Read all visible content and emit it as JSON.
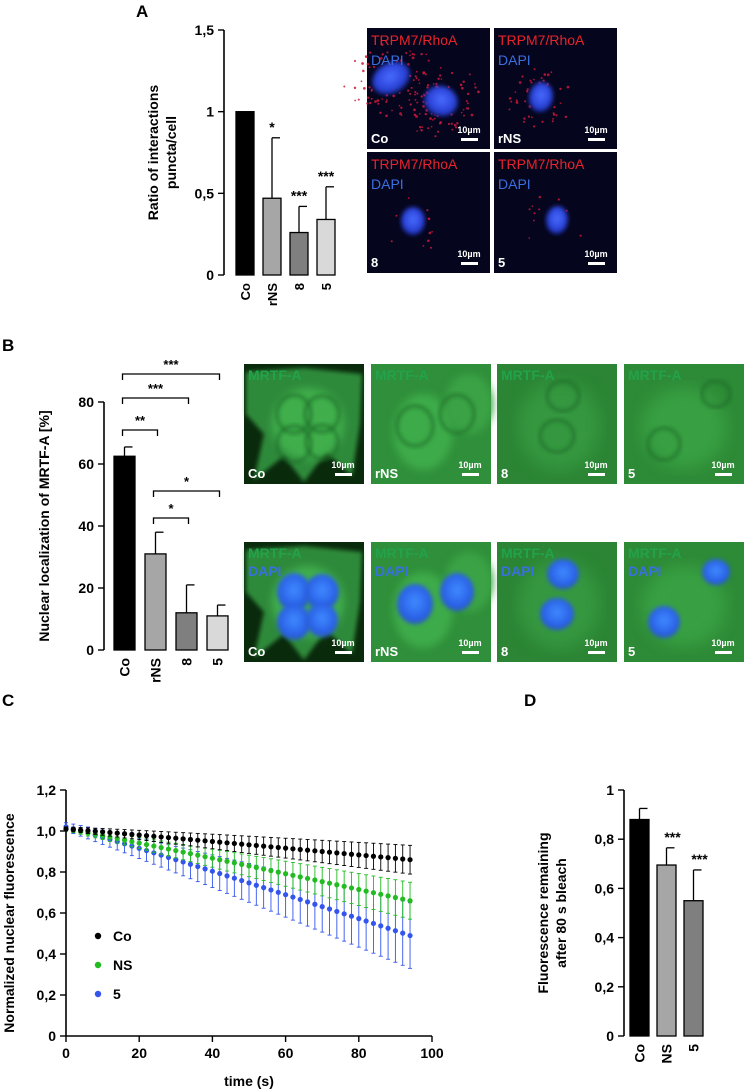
{
  "panels": {
    "A": {
      "letter": "A"
    },
    "B": {
      "letter": "B"
    },
    "C": {
      "letter": "C"
    },
    "D": {
      "letter": "D"
    }
  },
  "chart_data": [
    {
      "id": "A",
      "type": "bar",
      "categories": [
        "Co",
        "rNS",
        "8",
        "5"
      ],
      "values": [
        1.0,
        0.47,
        0.26,
        0.34
      ],
      "errors": [
        0,
        0.37,
        0.16,
        0.2
      ],
      "significance": [
        "",
        "*",
        "***",
        "***"
      ],
      "colors": [
        "#000000",
        "#a6a6a6",
        "#7f7f7f",
        "#d9d9d9"
      ],
      "ylabel_lines": [
        "Ratio of interactions",
        "puncta/cell"
      ],
      "ylim": [
        0,
        1.5
      ],
      "yticks": [
        0,
        0.5,
        1,
        1.5
      ],
      "ytick_labels": [
        "0",
        "0,5",
        "1",
        "1,5"
      ]
    },
    {
      "id": "B",
      "type": "bar",
      "categories": [
        "Co",
        "rNS",
        "8",
        "5"
      ],
      "values": [
        62.5,
        31,
        12,
        11
      ],
      "errors": [
        3,
        7,
        9,
        3.5
      ],
      "colors": [
        "#000000",
        "#a6a6a6",
        "#7f7f7f",
        "#d9d9d9"
      ],
      "ylabel": "Nuclear localization of MRTF-A [%]",
      "ylim": [
        0,
        80
      ],
      "yticks": [
        0,
        20,
        40,
        60,
        80
      ],
      "ytick_labels": [
        "0",
        "20",
        "40",
        "60",
        "80"
      ],
      "brackets": [
        {
          "from": 0,
          "to": 1,
          "label": "**"
        },
        {
          "from": 0,
          "to": 2,
          "label": "***"
        },
        {
          "from": 0,
          "to": 3,
          "label": "***"
        },
        {
          "from": 1,
          "to": 2,
          "label": "*"
        },
        {
          "from": 1,
          "to": 3,
          "label": "*"
        }
      ]
    },
    {
      "id": "C",
      "type": "scatter",
      "xlabel": "time (s)",
      "ylabel": "Normalized nuclear fluorescence",
      "xlim": [
        0,
        100
      ],
      "ylim": [
        0,
        1.2
      ],
      "xticks": [
        0,
        20,
        40,
        60,
        80,
        100
      ],
      "xtick_labels": [
        "0",
        "20",
        "40",
        "60",
        "80",
        "100"
      ],
      "yticks": [
        0,
        0.2,
        0.4,
        0.6,
        0.8,
        1.0,
        1.2
      ],
      "ytick_labels": [
        "0",
        "0,2",
        "0,4",
        "0,6",
        "0,8",
        "1,0",
        "1,2"
      ],
      "x_start": 0,
      "x_end": 94,
      "n_points": 48,
      "legend_position": "lower-left",
      "series": [
        {
          "name": "Co",
          "color": "#000000",
          "y_start": 1.01,
          "y_end": 0.86,
          "err_start": 0.01,
          "err_end": 0.07
        },
        {
          "name": "NS",
          "color": "#22bb22",
          "y_start": 1.01,
          "y_end": 0.66,
          "err_start": 0.01,
          "err_end": 0.09
        },
        {
          "name": "5",
          "color": "#3355ee",
          "y_start": 1.02,
          "y_end": 0.49,
          "err_start": 0.02,
          "err_end": 0.16
        }
      ]
    },
    {
      "id": "D",
      "type": "bar",
      "categories": [
        "Co",
        "NS",
        "5"
      ],
      "values": [
        0.88,
        0.695,
        0.55
      ],
      "errors": [
        0.045,
        0.07,
        0.125
      ],
      "significance": [
        "",
        "***",
        "***"
      ],
      "colors": [
        "#000000",
        "#a6a6a6",
        "#7f7f7f"
      ],
      "ylabel_lines": [
        "Fluorescence remaining",
        "after 80 s bleach"
      ],
      "ylim": [
        0,
        1
      ],
      "yticks": [
        0,
        0.2,
        0.4,
        0.6,
        0.8,
        1
      ],
      "ytick_labels": [
        "0",
        "0,2",
        "0,4",
        "0,6",
        "0,8",
        "1"
      ]
    }
  ],
  "micrographs": {
    "A": {
      "tiles": [
        {
          "label1": "TRPM7/RhoA",
          "label2": "DAPI",
          "corner": "Co",
          "scale": "10µm",
          "cells": 2,
          "puncta": 140
        },
        {
          "label1": "TRPM7/RhoA",
          "label2": "DAPI",
          "corner": "rNS",
          "scale": "10µm",
          "cells": 1,
          "puncta": 40
        },
        {
          "label1": "TRPM7/RhoA",
          "label2": "DAPI",
          "corner": "8",
          "scale": "10µm",
          "cells": 1,
          "puncta": 10
        },
        {
          "label1": "TRPM7/RhoA",
          "label2": "DAPI",
          "corner": "5",
          "scale": "10µm",
          "cells": 1,
          "puncta": 10
        }
      ],
      "label1_color": "#e8242a",
      "label2_color": "#3a6fe0"
    },
    "B": {
      "tiles": [
        {
          "label1": "MRTF-A",
          "label2": "",
          "corner": "Co",
          "scale": "10µm",
          "dapi": false
        },
        {
          "label1": "MRTF-A",
          "label2": "",
          "corner": "rNS",
          "scale": "10µm",
          "dapi": false
        },
        {
          "label1": "MRTF-A",
          "label2": "",
          "corner": "8",
          "scale": "10µm",
          "dapi": false
        },
        {
          "label1": "MRTF-A",
          "label2": "",
          "corner": "5",
          "scale": "10µm",
          "dapi": false
        },
        {
          "label1": "MRTF-A",
          "label2": "DAPI",
          "corner": "Co",
          "scale": "10µm",
          "dapi": true
        },
        {
          "label1": "MRTF-A",
          "label2": "DAPI",
          "corner": "rNS",
          "scale": "10µm",
          "dapi": true
        },
        {
          "label1": "MRTF-A",
          "label2": "DAPI",
          "corner": "8",
          "scale": "10µm",
          "dapi": true
        },
        {
          "label1": "MRTF-A",
          "label2": "DAPI",
          "corner": "5",
          "scale": "10µm",
          "dapi": true
        }
      ],
      "label1_color": "#22a24a",
      "label2_color": "#3a6fe0"
    }
  }
}
